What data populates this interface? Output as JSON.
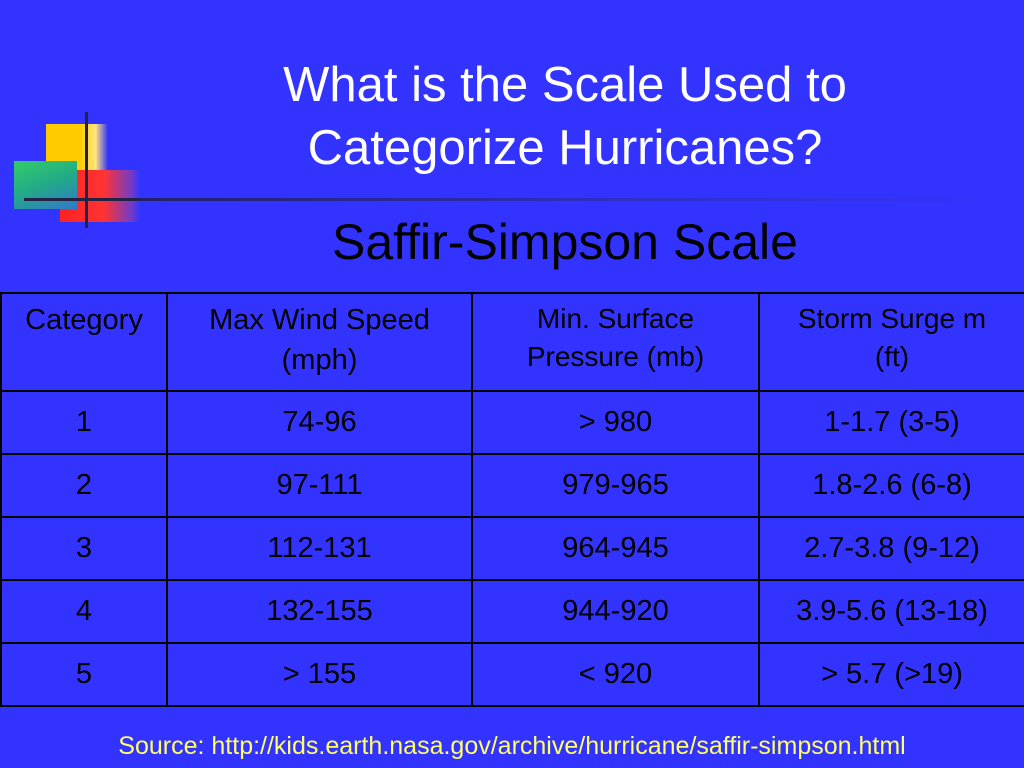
{
  "title": {
    "line1": "What is the Scale Used to",
    "line2": "Categorize Hurricanes?"
  },
  "subtitle": "Saffir-Simpson Scale",
  "table": {
    "headers": [
      "Category",
      "Max Wind Speed",
      "Min. Surface",
      "Storm Surge m"
    ],
    "headers_line2": [
      "",
      "(mph)",
      "Pressure (mb)",
      "(ft)"
    ],
    "rows": [
      [
        "1",
        "74-96",
        "> 980",
        "1-1.7 (3-5)"
      ],
      [
        "2",
        "97-111",
        "979-965",
        "1.8-2.6 (6-8)"
      ],
      [
        "3",
        "112-131",
        "964-945",
        "2.7-3.8 (9-12)"
      ],
      [
        "4",
        "132-155",
        "944-920",
        "3.9-5.6 (13-18)"
      ],
      [
        "5",
        "> 155",
        "< 920",
        "> 5.7 (>19)"
      ]
    ]
  },
  "source": "Source: http://kids.earth.nasa.gov/archive/hurricane/saffir-simpson.html",
  "colors": {
    "background": "#3333ff",
    "title": "#ffffff",
    "source": "#ffff66"
  }
}
